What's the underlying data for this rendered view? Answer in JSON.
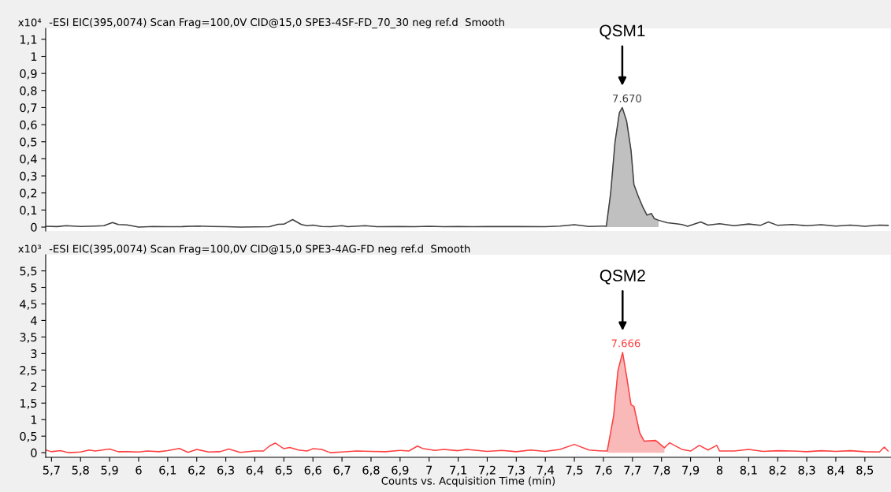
{
  "chart_data": [
    {
      "type": "line",
      "title": "-ESI EIC(395,0074) Scan Frag=100,0V CID@15,0 SPE3-4SF-FD_70_30 neg ref.d  Smooth",
      "ylabel": "x10⁴",
      "xlim": [
        5.68,
        8.59
      ],
      "ylim": [
        -0.023,
        1.164
      ],
      "yticks": [
        0,
        {
          "value": 0.1,
          "label": "0,1"
        },
        {
          "value": 0.2,
          "label": "0,2"
        },
        {
          "value": 0.3,
          "label": "0,3"
        },
        {
          "value": 0.4,
          "label": "0,4"
        },
        {
          "value": 0.5,
          "label": "0,5"
        },
        {
          "value": 0.6,
          "label": "0,6"
        },
        {
          "value": 0.7,
          "label": "0,7"
        },
        {
          "value": 0.8,
          "label": "0,8"
        },
        {
          "value": 0.9,
          "label": "0,9"
        },
        1,
        {
          "value": 1.1,
          "label": "1,1"
        }
      ],
      "tick_labels": "y",
      "grid": false,
      "legend": false,
      "series": [
        {
          "color": "#404040",
          "x": [
            5.68,
            5.72,
            5.75,
            5.8,
            5.85,
            5.88,
            5.91,
            5.93,
            5.96,
            6.0,
            6.05,
            6.1,
            6.15,
            6.2,
            6.25,
            6.3,
            6.35,
            6.4,
            6.45,
            6.48,
            6.5,
            6.53,
            6.56,
            6.58,
            6.6,
            6.63,
            6.66,
            6.7,
            6.72,
            6.78,
            6.82,
            6.9,
            6.95,
            7.0,
            7.05,
            7.1,
            7.15,
            7.2,
            7.3,
            7.4,
            7.45,
            7.5,
            7.55,
            7.6,
            7.61,
            7.625,
            7.64,
            7.655,
            7.665,
            7.68,
            7.695,
            7.705,
            7.72,
            7.735,
            7.75,
            7.765,
            7.775,
            7.79,
            7.82,
            7.85,
            7.87,
            7.89,
            7.935,
            7.96,
            8.0,
            8.05,
            8.1,
            8.14,
            8.168,
            8.2,
            8.25,
            8.3,
            8.35,
            8.4,
            8.45,
            8.5,
            8.55,
            8.58
          ],
          "values": [
            0.005,
            0.003,
            0.008,
            0.004,
            0.006,
            0.008,
            0.027,
            0.015,
            0.013,
            0.0,
            0.004,
            0.002,
            0.003,
            0.006,
            0.004,
            0.002,
            0.0,
            0.001,
            0.002,
            0.016,
            0.017,
            0.044,
            0.015,
            0.008,
            0.012,
            0.004,
            0.002,
            0.008,
            0.002,
            0.008,
            0.002,
            0.003,
            0.002,
            0.005,
            0.002,
            0.004,
            0.002,
            0.004,
            0.003,
            0.002,
            0.006,
            0.014,
            0.004,
            0.006,
            0.005,
            0.2,
            0.5,
            0.67,
            0.7,
            0.62,
            0.45,
            0.25,
            0.18,
            0.12,
            0.07,
            0.08,
            0.05,
            0.04,
            0.025,
            0.02,
            0.015,
            0.005,
            0.03,
            0.012,
            0.02,
            0.008,
            0.018,
            0.01,
            0.03,
            0.01,
            0.015,
            0.008,
            0.014,
            0.006,
            0.012,
            0.005,
            0.012,
            0.01
          ]
        },
        {
          "type": "area",
          "color": "#c0c0c0",
          "x": [
            7.61,
            7.625,
            7.64,
            7.655,
            7.665,
            7.68,
            7.695,
            7.705,
            7.72,
            7.735,
            7.75,
            7.765,
            7.775,
            7.79
          ],
          "values": [
            0.005,
            0.2,
            0.5,
            0.67,
            0.7,
            0.62,
            0.45,
            0.25,
            0.18,
            0.12,
            0.07,
            0.08,
            0.05,
            0.04
          ]
        }
      ],
      "annotations": [
        "QSM1",
        {
          "text": "7.670",
          "x": 7.67,
          "y": 0.7
        }
      ]
    },
    {
      "type": "line",
      "title": "-ESI EIC(395,0074) Scan Frag=100,0V CID@15,0 SPE3-4AG-FD neg ref.d  Smooth",
      "ylabel": "x10³",
      "xlabel": "Counts vs. Acquisition Time (min)",
      "xlim": [
        5.68,
        8.59
      ],
      "ylim": [
        -0.14,
        5.99
      ],
      "xticks": [
        {
          "value": 5.7,
          "label": "5,7"
        },
        {
          "value": 5.8,
          "label": "5,8"
        },
        {
          "value": 5.9,
          "label": "5,9"
        },
        6,
        {
          "value": 6.1,
          "label": "6,1"
        },
        {
          "value": 6.2,
          "label": "6,2"
        },
        {
          "value": 6.3,
          "label": "6,3"
        },
        {
          "value": 6.4,
          "label": "6,4"
        },
        {
          "value": 6.5,
          "label": "6,5"
        },
        {
          "value": 6.6,
          "label": "6,6"
        },
        {
          "value": 6.7,
          "label": "6,7"
        },
        {
          "value": 6.8,
          "label": "6,8"
        },
        {
          "value": 6.9,
          "label": "6,9"
        },
        7,
        {
          "value": 7.1,
          "label": "7,1"
        },
        {
          "value": 7.2,
          "label": "7,2"
        },
        {
          "value": 7.3,
          "label": "7,3"
        },
        {
          "value": 7.4,
          "label": "7,4"
        },
        {
          "value": 7.5,
          "label": "7,5"
        },
        {
          "value": 7.6,
          "label": "7,6"
        },
        {
          "value": 7.7,
          "label": "7,7"
        },
        {
          "value": 7.8,
          "label": "7,8"
        },
        {
          "value": 7.9,
          "label": "7,9"
        },
        8,
        {
          "value": 8.1,
          "label": "8,1"
        },
        {
          "value": 8.2,
          "label": "8,2"
        },
        {
          "value": 8.3,
          "label": "8,3"
        },
        {
          "value": 8.4,
          "label": "8,4"
        },
        {
          "value": 8.5,
          "label": "8,5"
        }
      ],
      "yticks": [
        0,
        {
          "value": 0.5,
          "label": "0,5"
        },
        1,
        {
          "value": 1.5,
          "label": "1,5"
        },
        2,
        {
          "value": 2.5,
          "label": "2,5"
        },
        3,
        {
          "value": 3.5,
          "label": "3,5"
        },
        4,
        {
          "value": 4.5,
          "label": "4,5"
        },
        5,
        {
          "value": 5.5,
          "label": "5,5"
        }
      ],
      "grid": false,
      "legend": false,
      "series": [
        {
          "color": "#ff4040",
          "x": [
            5.68,
            5.7,
            5.73,
            5.76,
            5.8,
            5.83,
            5.85,
            5.9,
            5.93,
            5.96,
            6.0,
            6.03,
            6.07,
            6.1,
            6.14,
            6.17,
            6.2,
            6.24,
            6.28,
            6.31,
            6.35,
            6.4,
            6.43,
            6.45,
            6.47,
            6.5,
            6.52,
            6.55,
            6.58,
            6.6,
            6.63,
            6.66,
            6.7,
            6.75,
            6.8,
            6.85,
            6.9,
            6.93,
            6.96,
            6.98,
            7.02,
            7.05,
            7.1,
            7.13,
            7.2,
            7.25,
            7.3,
            7.35,
            7.4,
            7.45,
            7.5,
            7.55,
            7.6,
            7.613,
            7.635,
            7.65,
            7.666,
            7.68,
            7.695,
            7.705,
            7.725,
            7.74,
            7.78,
            7.81,
            7.828,
            7.87,
            7.9,
            7.93,
            7.96,
            7.99,
            8.0,
            8.05,
            8.1,
            8.15,
            8.2,
            8.25,
            8.3,
            8.35,
            8.4,
            8.45,
            8.5,
            8.55,
            8.567,
            8.58
          ],
          "values": [
            0.08,
            0.03,
            0.06,
            0.0,
            0.02,
            0.08,
            0.05,
            0.11,
            0.03,
            0.03,
            0.02,
            0.05,
            0.03,
            0.06,
            0.13,
            0.01,
            0.1,
            0.02,
            0.03,
            0.11,
            0.01,
            0.05,
            0.05,
            0.2,
            0.29,
            0.12,
            0.16,
            0.08,
            0.05,
            0.12,
            0.1,
            0.0,
            0.02,
            0.05,
            0.04,
            0.03,
            0.07,
            0.05,
            0.2,
            0.12,
            0.07,
            0.1,
            0.06,
            0.1,
            0.04,
            0.07,
            0.03,
            0.08,
            0.04,
            0.1,
            0.25,
            0.08,
            0.05,
            0.05,
            1.1,
            2.48,
            3.03,
            2.3,
            1.45,
            1.4,
            0.6,
            0.35,
            0.37,
            0.15,
            0.3,
            0.1,
            0.05,
            0.22,
            0.08,
            0.22,
            0.05,
            0.05,
            0.1,
            0.04,
            0.06,
            0.05,
            0.03,
            0.06,
            0.04,
            0.06,
            0.03,
            0.02,
            0.17,
            0.05
          ]
        },
        {
          "type": "area",
          "color": "#f9b9b9",
          "x": [
            7.613,
            7.635,
            7.65,
            7.666,
            7.68,
            7.695,
            7.705,
            7.725,
            7.74,
            7.78,
            7.81
          ],
          "values": [
            0.05,
            1.1,
            2.48,
            3.03,
            2.3,
            1.45,
            1.4,
            0.6,
            0.35,
            0.37,
            0.15
          ]
        }
      ],
      "annotations": [
        "QSM2",
        {
          "text": "7.666",
          "x": 7.666,
          "y": 3.03
        }
      ]
    }
  ]
}
